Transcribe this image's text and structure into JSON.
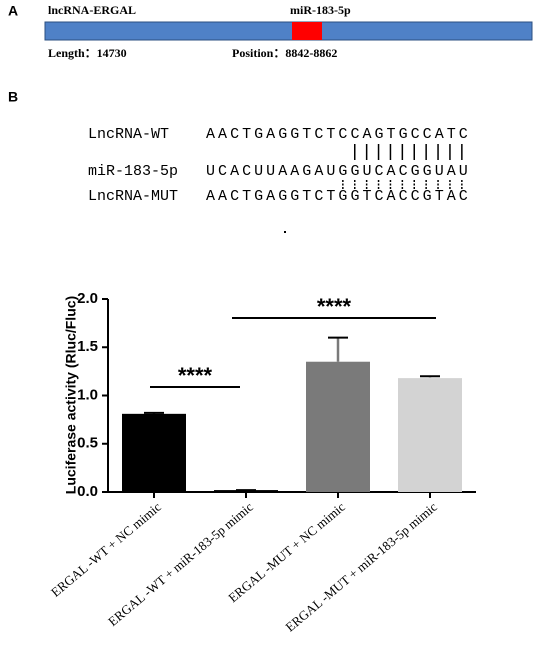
{
  "panel_a": {
    "label": "A",
    "gene": "lncRNA-ERGAL",
    "mirna": "miR-183-5p",
    "length": "Length：14730",
    "position": "Position：8842-8862"
  },
  "panel_b": {
    "label": "B",
    "rows": [
      {
        "name": "LncRNA-WT",
        "sequence": "AACTGAGGTCTCCAGTGCCATC"
      },
      {
        "name": "miR-183-5p",
        "sequence": "UCACUUAAGAUGGUCACGGUAU"
      },
      {
        "name": "LncRNA-MUT",
        "sequence": "AACTGAGGTCTGGTCACCGTAC"
      }
    ]
  },
  "chart_data": {
    "type": "bar",
    "y_label": "Luciferase activity (Rluc/Fluc)",
    "categories": [
      "ERGAL -WT + NC mimic",
      "ERGAL -WT + miR-183-5p mimic",
      "ERGAL -MUT + NC mimic",
      "ERGAL -MUT + miR-183-5p mimic"
    ],
    "values": [
      0.81,
      0.02,
      1.35,
      1.18
    ],
    "errors": [
      0.01,
      0,
      0.25,
      0.02
    ],
    "colors": [
      "#000000",
      "#000000",
      "#7a7a7a",
      "#d3d3d3"
    ],
    "ylim": [
      0,
      2
    ],
    "yticks": [
      {
        "value": 0,
        "label": "0.0"
      },
      {
        "value": 0.5,
        "label": "0.5"
      },
      {
        "value": 1,
        "label": "1.0"
      },
      {
        "value": 1.5,
        "label": "1.5"
      },
      {
        "value": 2,
        "label": "2.0"
      }
    ],
    "annotations": [
      "****",
      "****"
    ]
  }
}
